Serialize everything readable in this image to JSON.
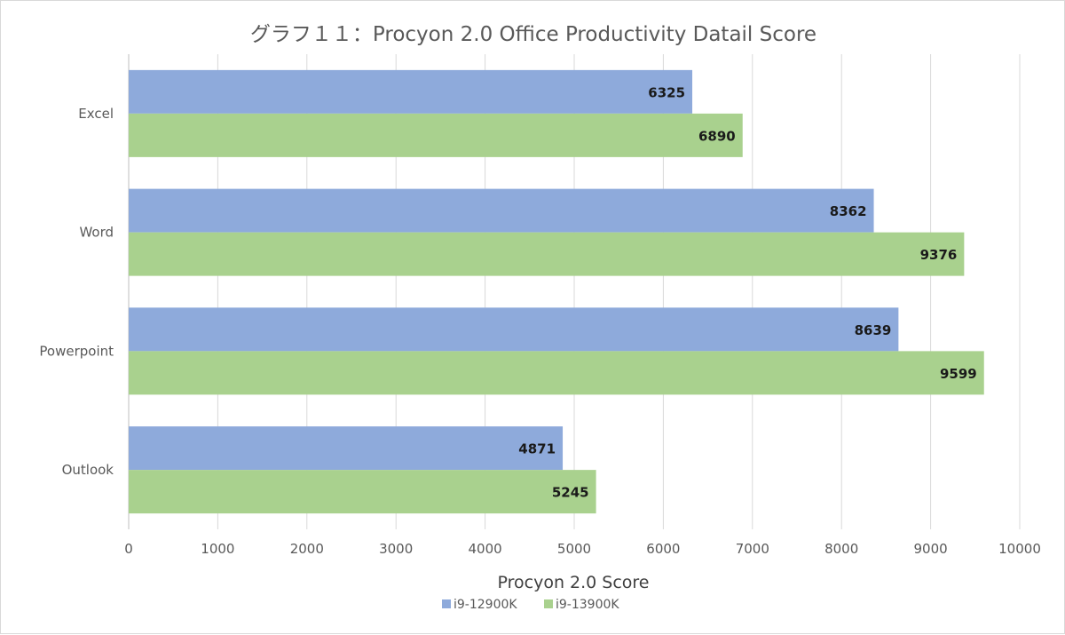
{
  "chart_data": {
    "type": "bar",
    "orientation": "horizontal",
    "title": "グラフ１１：Procyon 2.0 Office Productivity Datail Score",
    "xlabel": "Procyon 2.0 Score",
    "ylabel": "",
    "xlim": [
      0,
      10000
    ],
    "x_ticks": [
      "0",
      "1000",
      "2000",
      "3000",
      "4000",
      "5000",
      "6000",
      "7000",
      "8000",
      "9000",
      "10000"
    ],
    "categories": [
      "Excel",
      "Word",
      "Powerpoint",
      "Outlook"
    ],
    "series": [
      {
        "name": "i9-12900K",
        "color": "#8eaadb",
        "values": [
          6325,
          8362,
          8639,
          4871
        ]
      },
      {
        "name": "i9-13900K",
        "color": "#a9d18e",
        "values": [
          6890,
          9376,
          9599,
          5245
        ]
      }
    ],
    "grid": "vertical",
    "legend_position": "bottom",
    "data_labels": "inside-end"
  }
}
